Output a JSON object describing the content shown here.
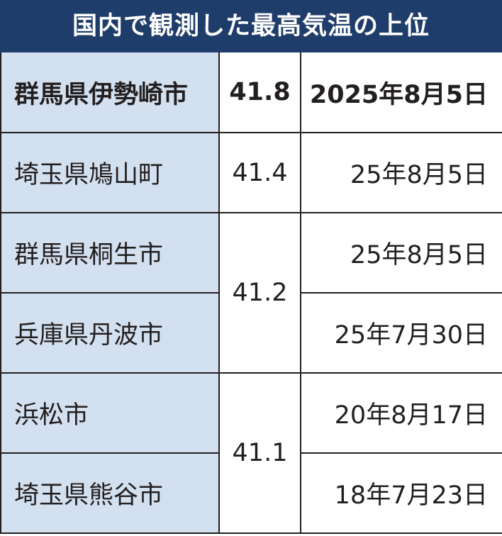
{
  "title": "国内で観測した最高気温の上位",
  "rows": [
    {
      "place": "群馬県伊勢崎市",
      "temp": "41.8",
      "date": "2025年8月5日"
    },
    {
      "place": "埼玉県鳩山町",
      "temp": "41.4",
      "date": "25年8月5日"
    },
    {
      "place": "群馬県桐生市",
      "temp": "41.2",
      "date": "25年8月5日"
    },
    {
      "place": "兵庫県丹波市",
      "temp": "",
      "date": "25年7月30日"
    },
    {
      "place": "浜松市",
      "temp": "41.1",
      "date": "20年8月17日"
    },
    {
      "place": "埼玉県熊谷市",
      "temp": "",
      "date": "18年7月23日"
    }
  ],
  "colors": {
    "header_bg": "#1f3d6b",
    "header_text": "#ffffff",
    "place_bg": "#d3e0ef",
    "border": "#231f20"
  }
}
